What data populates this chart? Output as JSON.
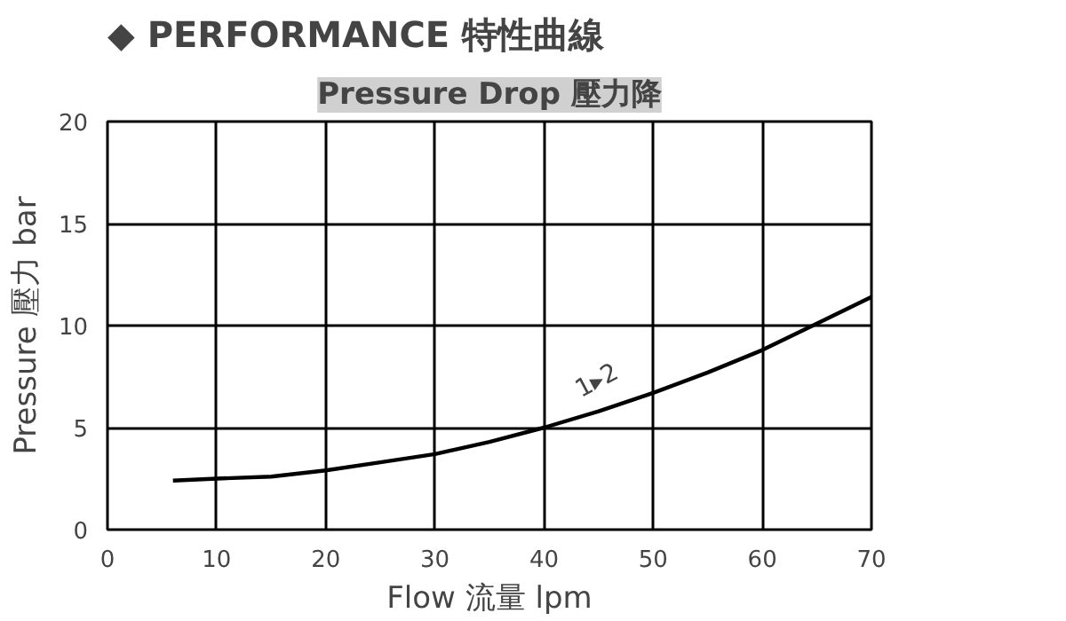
{
  "chart_data": {
    "type": "line",
    "title": "◆ PERFORMANCE 特性曲線",
    "subtitle": "Pressure Drop 壓力降",
    "xlabel": "Flow 流量 lpm",
    "ylabel": "Pressure 壓力 bar",
    "x": [
      6,
      10,
      15,
      20,
      25,
      30,
      35,
      40,
      45,
      50,
      55,
      60,
      65,
      70
    ],
    "series": [
      {
        "color": "#000000",
        "values": [
          2.4,
          2.5,
          2.6,
          2.9,
          3.3,
          3.7,
          4.3,
          5.0,
          5.8,
          6.7,
          7.7,
          8.8,
          10.1,
          11.4
        ]
      }
    ],
    "xlim": [
      0,
      70
    ],
    "ylim": [
      0,
      20
    ],
    "xticks": [
      0,
      10,
      20,
      30,
      40,
      50,
      60,
      70
    ],
    "yticks": [
      0,
      5,
      10,
      15,
      20
    ],
    "grid": true,
    "marker": "none",
    "line_style": "solid",
    "annotations": [
      {
        "text": "1▸2",
        "x": 45,
        "y": 5.8
      }
    ]
  }
}
